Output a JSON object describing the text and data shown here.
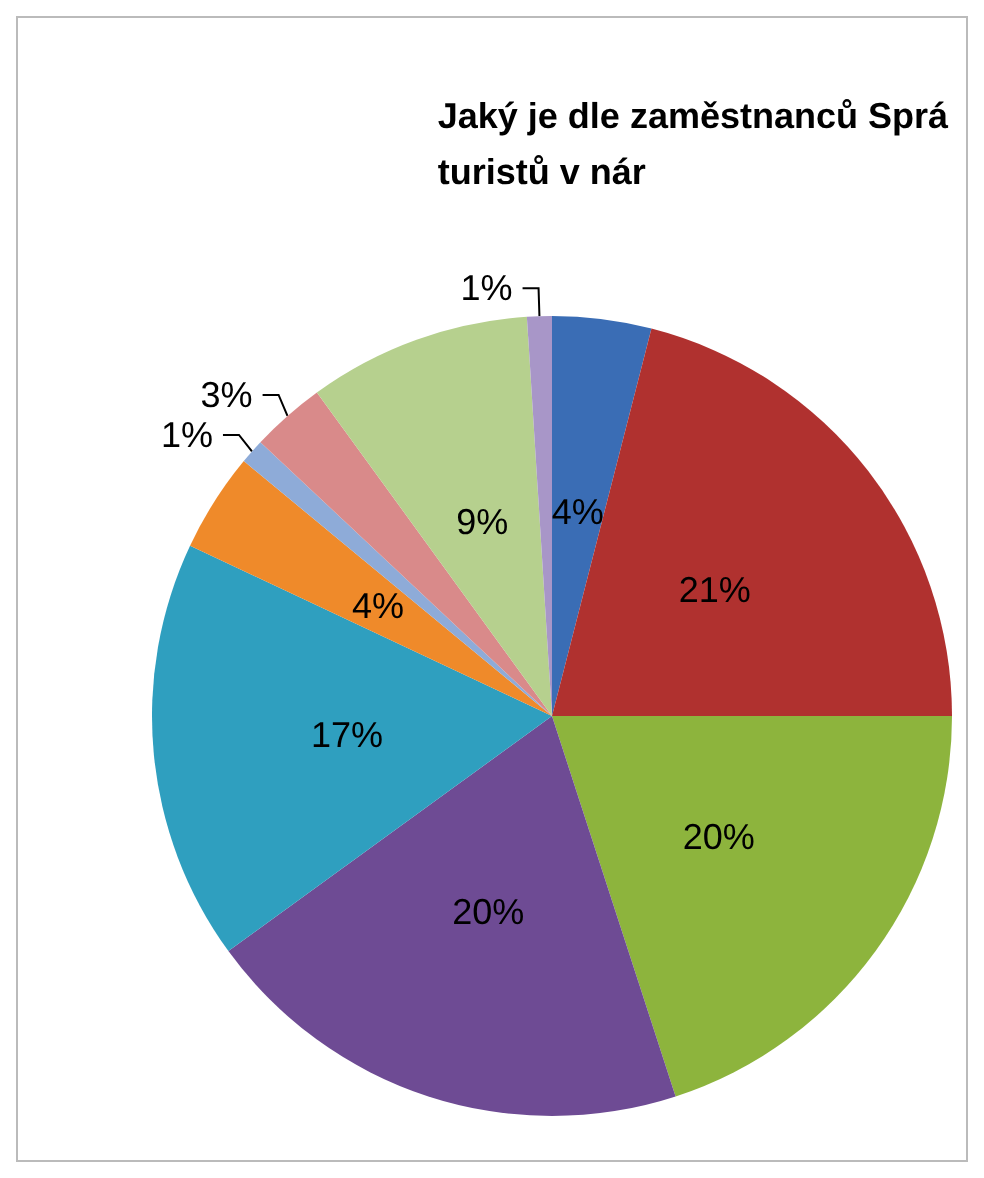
{
  "chart_data": {
    "type": "pie",
    "title": "Jaký je dle zaměstnanců Sprá\nturistů v nár",
    "categories": [
      null,
      null,
      null,
      null,
      null,
      null,
      null,
      null,
      null,
      null
    ],
    "values": [
      4,
      21,
      20,
      20,
      17,
      4,
      1,
      3,
      9,
      1
    ],
    "value_labels": [
      "4%",
      "21%",
      "20%",
      "20%",
      "17%",
      "4%",
      "1%",
      "3%",
      "9%",
      "1%"
    ],
    "colors": [
      "#3a6db5",
      "#b0312f",
      "#8db43d",
      "#6e4b94",
      "#2f9fbf",
      "#ef8a2a",
      "#8eabd8",
      "#d98a8a",
      "#b6d08e",
      "#a896c8"
    ]
  }
}
